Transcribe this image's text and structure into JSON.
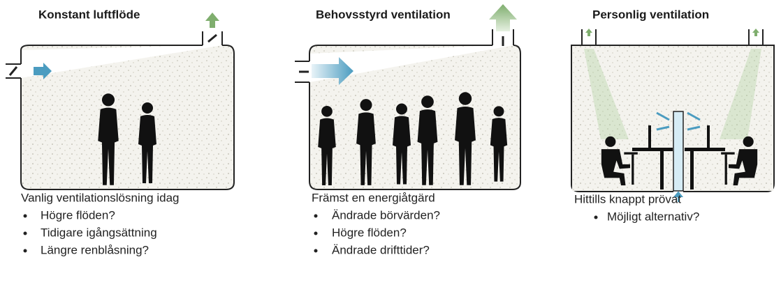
{
  "panels": [
    {
      "title": "Konstant luftflöde",
      "caption": "Vanlig ventilationslösning idag",
      "bullets": [
        "Högre flöden?",
        "Tidigare igångsättning",
        "Längre renblåsning?"
      ]
    },
    {
      "title": "Behovsstyrd ventilation",
      "caption": "Främst en energiåtgärd",
      "bullets": [
        "Ändrade börvärden?",
        "Högre flöden?",
        "Ändrade drifttider?"
      ]
    },
    {
      "title": "Personlig ventilation",
      "caption": "Hittills knappt prövat",
      "bullets": [
        "Möjligt alternativ?"
      ]
    }
  ]
}
